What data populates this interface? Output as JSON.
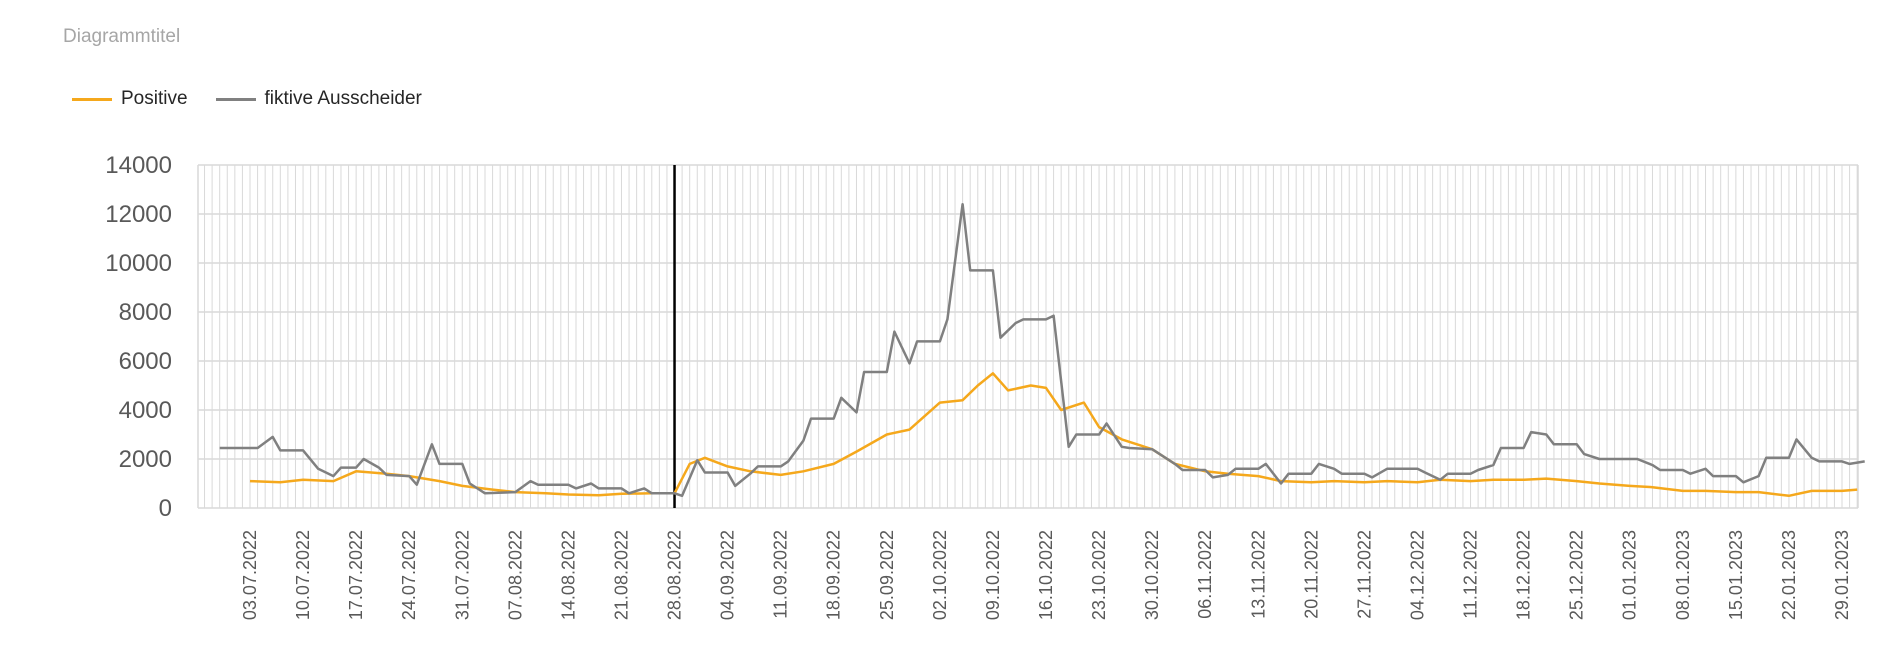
{
  "title": "Diagrammtitel",
  "chart_data": {
    "type": "line",
    "title": "Diagrammtitel",
    "xlabel": "",
    "ylabel": "",
    "ylim": [
      0,
      14000
    ],
    "yticks": [
      0,
      2000,
      4000,
      6000,
      8000,
      10000,
      12000,
      14000
    ],
    "grid": true,
    "legend": "top-left",
    "x_tick_labels": [
      "03.07.2022",
      "10.07.2022",
      "17.07.2022",
      "24.07.2022",
      "31.07.2022",
      "07.08.2022",
      "14.08.2022",
      "21.08.2022",
      "28.08.2022",
      "04.09.2022",
      "11.09.2022",
      "18.09.2022",
      "25.09.2022",
      "02.10.2022",
      "09.10.2022",
      "16.10.2022",
      "23.10.2022",
      "30.10.2022",
      "06.11.2022",
      "13.11.2022",
      "20.11.2022",
      "27.11.2022",
      "04.12.2022",
      "11.12.2022",
      "18.12.2022",
      "25.12.2022",
      "01.01.2023",
      "08.01.2023",
      "15.01.2023",
      "22.01.2023",
      "29.01.2023"
    ],
    "vertical_marker": "28.08.2022",
    "series": [
      {
        "name": "Positive",
        "color": "#f5a81c",
        "points": [
          [
            "03.07.2022",
            1100
          ],
          [
            "07.07.2022",
            1050
          ],
          [
            "10.07.2022",
            1150
          ],
          [
            "14.07.2022",
            1100
          ],
          [
            "17.07.2022",
            1500
          ],
          [
            "21.07.2022",
            1400
          ],
          [
            "24.07.2022",
            1300
          ],
          [
            "28.07.2022",
            1100
          ],
          [
            "31.07.2022",
            900
          ],
          [
            "04.08.2022",
            750
          ],
          [
            "07.08.2022",
            650
          ],
          [
            "11.08.2022",
            600
          ],
          [
            "14.08.2022",
            550
          ],
          [
            "18.08.2022",
            520
          ],
          [
            "21.08.2022",
            580
          ],
          [
            "25.08.2022",
            600
          ],
          [
            "28.08.2022",
            600
          ],
          [
            "30.08.2022",
            1800
          ],
          [
            "01.09.2022",
            2050
          ],
          [
            "04.09.2022",
            1700
          ],
          [
            "07.09.2022",
            1500
          ],
          [
            "11.09.2022",
            1350
          ],
          [
            "14.09.2022",
            1500
          ],
          [
            "18.09.2022",
            1800
          ],
          [
            "21.09.2022",
            2300
          ],
          [
            "25.09.2022",
            3000
          ],
          [
            "28.09.2022",
            3200
          ],
          [
            "02.10.2022",
            4300
          ],
          [
            "05.10.2022",
            4400
          ],
          [
            "07.10.2022",
            5000
          ],
          [
            "09.10.2022",
            5500
          ],
          [
            "11.10.2022",
            4800
          ],
          [
            "14.10.2022",
            5000
          ],
          [
            "16.10.2022",
            4900
          ],
          [
            "18.10.2022",
            4000
          ],
          [
            "21.10.2022",
            4300
          ],
          [
            "23.10.2022",
            3300
          ],
          [
            "26.10.2022",
            2800
          ],
          [
            "30.10.2022",
            2400
          ],
          [
            "02.11.2022",
            1800
          ],
          [
            "06.11.2022",
            1500
          ],
          [
            "09.11.2022",
            1400
          ],
          [
            "13.11.2022",
            1300
          ],
          [
            "16.11.2022",
            1100
          ],
          [
            "20.11.2022",
            1050
          ],
          [
            "23.11.2022",
            1100
          ],
          [
            "27.11.2022",
            1050
          ],
          [
            "30.11.2022",
            1100
          ],
          [
            "04.12.2022",
            1050
          ],
          [
            "07.12.2022",
            1150
          ],
          [
            "11.12.2022",
            1100
          ],
          [
            "14.12.2022",
            1150
          ],
          [
            "18.12.2022",
            1150
          ],
          [
            "21.12.2022",
            1200
          ],
          [
            "25.12.2022",
            1100
          ],
          [
            "28.12.2022",
            1000
          ],
          [
            "01.01.2023",
            900
          ],
          [
            "04.01.2023",
            850
          ],
          [
            "08.01.2023",
            700
          ],
          [
            "11.01.2023",
            700
          ],
          [
            "15.01.2023",
            650
          ],
          [
            "18.01.2023",
            650
          ],
          [
            "22.01.2023",
            500
          ],
          [
            "25.01.2023",
            700
          ],
          [
            "29.01.2023",
            700
          ],
          [
            "31.01.2023",
            750
          ]
        ]
      },
      {
        "name": "fiktive  Ausscheider",
        "color": "#808080",
        "points": [
          [
            "29.06.2022",
            2450
          ],
          [
            "04.07.2022",
            2450
          ],
          [
            "06.07.2022",
            2900
          ],
          [
            "07.07.2022",
            2350
          ],
          [
            "10.07.2022",
            2350
          ],
          [
            "12.07.2022",
            1600
          ],
          [
            "14.07.2022",
            1300
          ],
          [
            "15.07.2022",
            1650
          ],
          [
            "17.07.2022",
            1650
          ],
          [
            "18.07.2022",
            2000
          ],
          [
            "20.07.2022",
            1650
          ],
          [
            "21.07.2022",
            1350
          ],
          [
            "24.07.2022",
            1300
          ],
          [
            "25.07.2022",
            950
          ],
          [
            "27.07.2022",
            2600
          ],
          [
            "28.07.2022",
            1800
          ],
          [
            "31.07.2022",
            1800
          ],
          [
            "01.08.2022",
            1000
          ],
          [
            "03.08.2022",
            600
          ],
          [
            "07.08.2022",
            650
          ],
          [
            "09.08.2022",
            1100
          ],
          [
            "10.08.2022",
            950
          ],
          [
            "14.08.2022",
            950
          ],
          [
            "15.08.2022",
            800
          ],
          [
            "17.08.2022",
            1000
          ],
          [
            "18.08.2022",
            800
          ],
          [
            "21.08.2022",
            800
          ],
          [
            "22.08.2022",
            600
          ],
          [
            "24.08.2022",
            800
          ],
          [
            "25.08.2022",
            600
          ],
          [
            "28.08.2022",
            600
          ],
          [
            "29.08.2022",
            500
          ],
          [
            "31.08.2022",
            1950
          ],
          [
            "01.09.2022",
            1450
          ],
          [
            "04.09.2022",
            1450
          ],
          [
            "05.09.2022",
            900
          ],
          [
            "07.09.2022",
            1400
          ],
          [
            "08.09.2022",
            1700
          ],
          [
            "11.09.2022",
            1700
          ],
          [
            "12.09.2022",
            1900
          ],
          [
            "14.09.2022",
            2750
          ],
          [
            "15.09.2022",
            3650
          ],
          [
            "18.09.2022",
            3650
          ],
          [
            "19.09.2022",
            4500
          ],
          [
            "21.09.2022",
            3900
          ],
          [
            "22.09.2022",
            5550
          ],
          [
            "25.09.2022",
            5550
          ],
          [
            "26.09.2022",
            7200
          ],
          [
            "28.09.2022",
            5900
          ],
          [
            "29.09.2022",
            6800
          ],
          [
            "02.10.2022",
            6800
          ],
          [
            "03.10.2022",
            7700
          ],
          [
            "05.10.2022",
            12400
          ],
          [
            "06.10.2022",
            9700
          ],
          [
            "09.10.2022",
            9700
          ],
          [
            "10.10.2022",
            6950
          ],
          [
            "12.10.2022",
            7550
          ],
          [
            "13.10.2022",
            7700
          ],
          [
            "16.10.2022",
            7700
          ],
          [
            "17.10.2022",
            7850
          ],
          [
            "19.10.2022",
            2500
          ],
          [
            "20.10.2022",
            3000
          ],
          [
            "23.10.2022",
            3000
          ],
          [
            "24.10.2022",
            3450
          ],
          [
            "26.10.2022",
            2500
          ],
          [
            "27.10.2022",
            2450
          ],
          [
            "30.10.2022",
            2400
          ],
          [
            "31.10.2022",
            2200
          ],
          [
            "02.11.2022",
            1800
          ],
          [
            "03.11.2022",
            1550
          ],
          [
            "06.11.2022",
            1550
          ],
          [
            "07.11.2022",
            1250
          ],
          [
            "09.11.2022",
            1350
          ],
          [
            "10.11.2022",
            1600
          ],
          [
            "13.11.2022",
            1600
          ],
          [
            "14.11.2022",
            1800
          ],
          [
            "16.11.2022",
            1000
          ],
          [
            "17.11.2022",
            1400
          ],
          [
            "20.11.2022",
            1400
          ],
          [
            "21.11.2022",
            1800
          ],
          [
            "23.11.2022",
            1600
          ],
          [
            "24.11.2022",
            1400
          ],
          [
            "27.11.2022",
            1400
          ],
          [
            "28.11.2022",
            1250
          ],
          [
            "30.11.2022",
            1600
          ],
          [
            "01.12.2022",
            1600
          ],
          [
            "04.12.2022",
            1600
          ],
          [
            "05.12.2022",
            1450
          ],
          [
            "07.12.2022",
            1150
          ],
          [
            "08.12.2022",
            1400
          ],
          [
            "11.12.2022",
            1400
          ],
          [
            "12.12.2022",
            1550
          ],
          [
            "14.12.2022",
            1750
          ],
          [
            "15.12.2022",
            2450
          ],
          [
            "18.12.2022",
            2450
          ],
          [
            "19.12.2022",
            3100
          ],
          [
            "21.12.2022",
            3000
          ],
          [
            "22.12.2022",
            2600
          ],
          [
            "25.12.2022",
            2600
          ],
          [
            "26.12.2022",
            2200
          ],
          [
            "28.12.2022",
            2000
          ],
          [
            "29.12.2022",
            2000
          ],
          [
            "01.01.2023",
            2000
          ],
          [
            "02.01.2023",
            2000
          ],
          [
            "04.01.2023",
            1750
          ],
          [
            "05.01.2023",
            1550
          ],
          [
            "08.01.2023",
            1550
          ],
          [
            "09.01.2023",
            1400
          ],
          [
            "11.01.2023",
            1600
          ],
          [
            "12.01.2023",
            1300
          ],
          [
            "15.01.2023",
            1300
          ],
          [
            "16.01.2023",
            1050
          ],
          [
            "18.01.2023",
            1300
          ],
          [
            "19.01.2023",
            2050
          ],
          [
            "22.01.2023",
            2050
          ],
          [
            "23.01.2023",
            2800
          ],
          [
            "25.01.2023",
            2050
          ],
          [
            "26.01.2023",
            1900
          ],
          [
            "29.01.2023",
            1900
          ],
          [
            "30.01.2023",
            1800
          ],
          [
            "01.02.2023",
            1900
          ]
        ]
      }
    ]
  }
}
